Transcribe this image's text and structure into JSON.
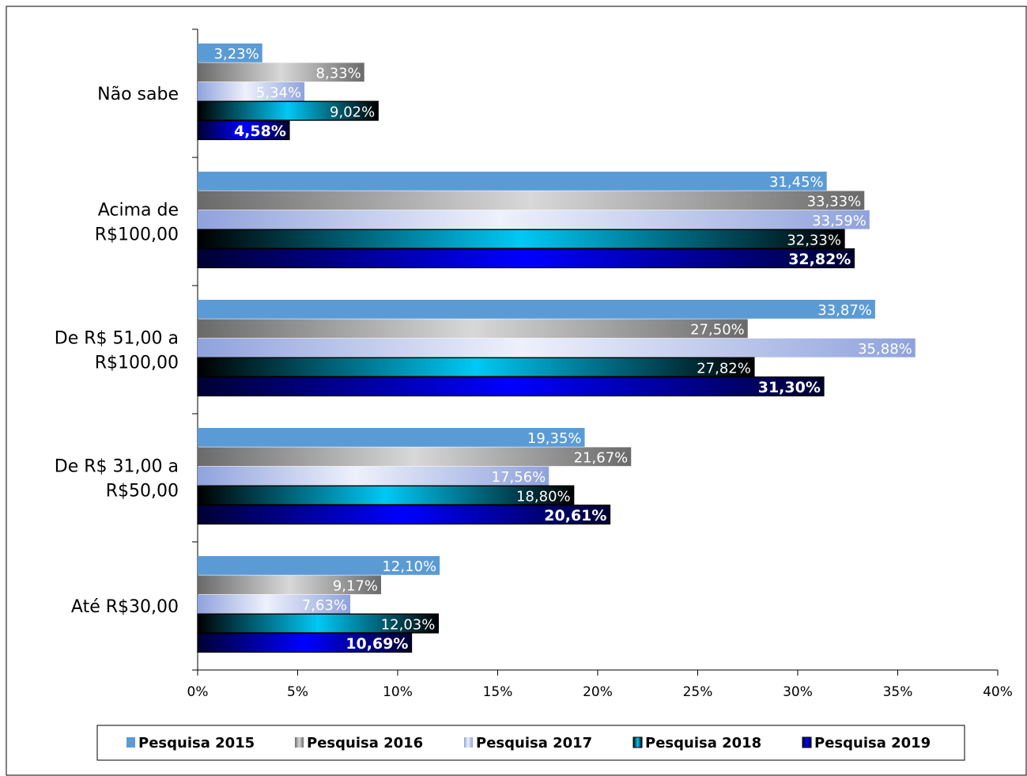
{
  "chart_data": {
    "type": "bar",
    "orientation": "horizontal",
    "categories": [
      "Não sabe",
      "Acima de R$100,00",
      "De R$ 51,00 a R$100,00",
      "De R$ 31,00 a R$50,00",
      "Até R$30,00"
    ],
    "category_lines": [
      [
        "Não sabe"
      ],
      [
        "Acima de",
        "R$100,00"
      ],
      [
        "De R$ 51,00 a",
        "R$100,00"
      ],
      [
        "De R$ 31,00 a",
        "R$50,00"
      ],
      [
        "Até R$30,00"
      ]
    ],
    "series": [
      {
        "name": "Pesquisa 2015",
        "values": [
          3.23,
          31.45,
          33.87,
          19.35,
          12.1
        ],
        "labels": [
          "3,23%",
          "31,45%",
          "33,87%",
          "19,35%",
          "12,10%"
        ],
        "color": "#5b9bd5"
      },
      {
        "name": "Pesquisa 2016",
        "values": [
          8.33,
          33.33,
          27.5,
          21.67,
          9.17
        ],
        "labels": [
          "8,33%",
          "33,33%",
          "27,50%",
          "21,67%",
          "9,17%"
        ],
        "color": "#7f7f7f"
      },
      {
        "name": "Pesquisa 2017",
        "values": [
          5.34,
          33.59,
          35.88,
          17.56,
          7.63
        ],
        "labels": [
          "5,34%",
          "33,59%",
          "35,88%",
          "17,56%",
          "7,63%"
        ],
        "color": "#a9b8e6"
      },
      {
        "name": "Pesquisa 2018",
        "values": [
          9.02,
          32.33,
          27.82,
          18.8,
          12.03
        ],
        "labels": [
          "9,02%",
          "32,33%",
          "27,82%",
          "18,80%",
          "12,03%"
        ],
        "color": "#00b0f0"
      },
      {
        "name": "Pesquisa 2019",
        "values": [
          4.58,
          32.82,
          31.3,
          20.61,
          10.69
        ],
        "labels": [
          "4,58%",
          "32,82%",
          "31,30%",
          "20,61%",
          "10,69%"
        ],
        "color": "#0000ff"
      }
    ],
    "xlim": [
      0,
      40
    ],
    "xticks": [
      "0%",
      "5%",
      "10%",
      "15%",
      "20%",
      "25%",
      "30%",
      "35%",
      "40%"
    ],
    "title": "",
    "xlabel": "",
    "ylabel": "",
    "grid": false,
    "legend_position": "bottom"
  }
}
